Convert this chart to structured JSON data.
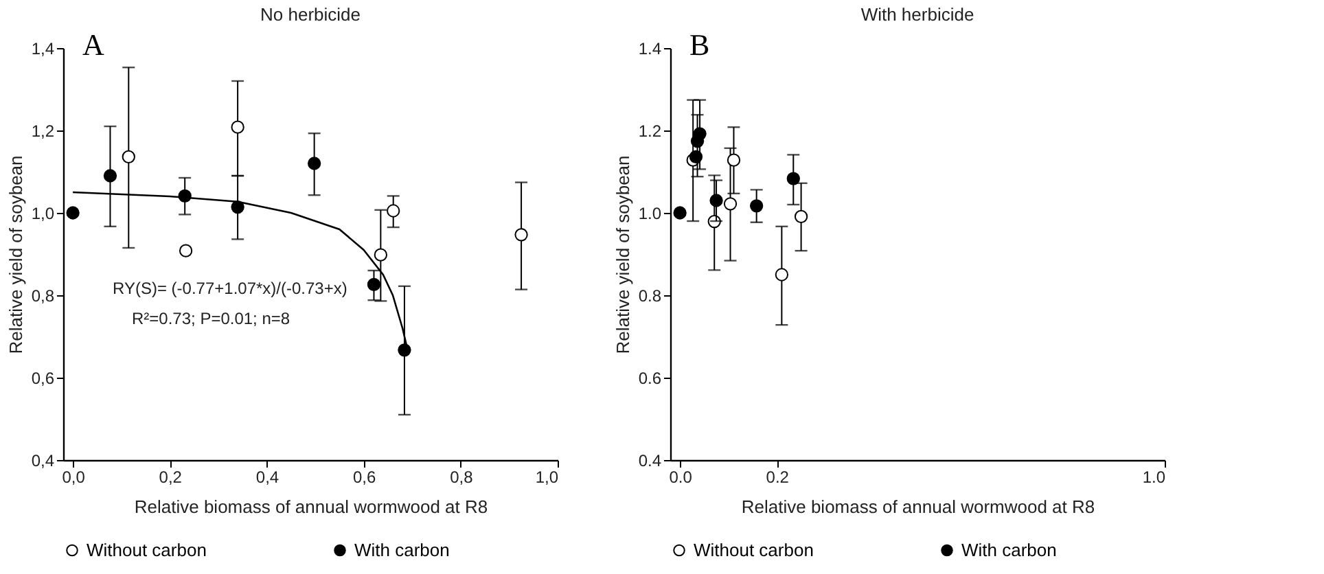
{
  "chart_data": [
    {
      "type": "scatter",
      "title": "No herbicide",
      "xlabel": "Relative biomass of annual wormwood at R8",
      "ylabel": "Relative yield of soybean",
      "annotations": [
        "A",
        "RY(S)= (-0.77+1.07*x)/(-0.73+x)",
        "R²=0.73; P=0.01; n=8"
      ],
      "xlim": [
        -0.02,
        1.0
      ],
      "ylim": [
        0.4,
        1.4
      ],
      "xticks": [
        {
          "value": 0,
          "label": "0,0"
        },
        {
          "value": 0.2,
          "label": "0,2"
        },
        {
          "value": 0.4,
          "label": "0,4"
        },
        {
          "value": 0.6,
          "label": "0,6"
        },
        {
          "value": 0.8,
          "label": "0,8"
        },
        {
          "value": 1.0,
          "label": "1,0"
        }
      ],
      "yticks": [
        {
          "value": 0.4,
          "label": "0,4"
        },
        {
          "value": 0.6,
          "label": "0,6"
        },
        {
          "value": 0.8,
          "label": "0,8"
        },
        {
          "value": 1.0,
          "label": "1,0"
        },
        {
          "value": 1.2,
          "label": "1,2"
        },
        {
          "value": 1.4,
          "label": "1,4"
        }
      ],
      "grid": false,
      "legend": "bottom",
      "marker": "circle",
      "series": [
        {
          "name": "Without carbon",
          "color": "#ffffff",
          "x": [
            0.115,
            0.233,
            0.34,
            0.635,
            0.661,
            0.925
          ],
          "values": [
            1.136,
            0.908,
            1.208,
            0.898,
            1.005,
            0.947
          ],
          "errors": [
            [
              0.915,
              1.353
            ],
            null,
            [
              1.09,
              1.32
            ],
            [
              0.786,
              1.007
            ],
            [
              0.965,
              1.041
            ],
            [
              0.814,
              1.074
            ]
          ]
        },
        {
          "name": "With  carbon",
          "color": "#000000",
          "x": [
            0.0,
            0.077,
            0.231,
            0.34,
            0.498,
            0.621,
            0.684
          ],
          "values": [
            1.0,
            1.09,
            1.041,
            1.014,
            1.12,
            0.826,
            0.667
          ],
          "errors": [
            null,
            [
              0.967,
              1.21
            ],
            [
              0.996,
              1.085
            ],
            [
              0.936,
              1.09
            ],
            [
              1.043,
              1.193
            ],
            [
              0.788,
              0.86
            ],
            [
              0.51,
              0.822
            ]
          ]
        },
        {
          "type": "line",
          "color": "#000000",
          "marker": "none",
          "x": [
            0.0,
            0.1,
            0.2,
            0.34,
            0.45,
            0.55,
            0.6,
            0.64,
            0.66,
            0.68,
            0.69
          ],
          "values": [
            1.05,
            1.045,
            1.04,
            1.027,
            1.0,
            0.96,
            0.91,
            0.85,
            0.8,
            0.72,
            0.67
          ]
        }
      ]
    },
    {
      "type": "scatter",
      "title": "With herbicide",
      "xlabel": "Relative biomass of annual wormwood at R8",
      "ylabel": "Relative yield of soybean",
      "annotations": [
        "B"
      ],
      "xlim": [
        -0.02,
        1.0
      ],
      "ylim": [
        0.4,
        1.4
      ],
      "xticks": [
        {
          "value": 0,
          "label": "0.0"
        },
        0.2,
        {
          "value": 1.0,
          "label": "1.0"
        }
      ],
      "yticks": [
        0.4,
        0.6,
        0.8,
        {
          "value": 1.0,
          "label": "1.0"
        },
        1.2,
        1.4
      ],
      "grid": false,
      "legend": "bottom",
      "marker": "circle",
      "series": [
        {
          "name": "Without carbon",
          "color": "#ffffff",
          "x": [
            0.027,
            0.071,
            0.104,
            0.111,
            0.21,
            0.25
          ],
          "values": [
            1.128,
            0.979,
            1.022,
            1.128,
            0.85,
            0.991
          ],
          "errors": [
            [
              0.98,
              1.274
            ],
            [
              0.861,
              1.091
            ],
            [
              0.884,
              1.157
            ],
            [
              1.047,
              1.208
            ],
            [
              0.728,
              0.967
            ],
            [
              0.908,
              1.072
            ]
          ]
        },
        {
          "name": "With  carbon",
          "color": "#000000",
          "x": [
            0.0,
            0.033,
            0.036,
            0.041,
            0.075,
            0.158,
            0.234
          ],
          "values": [
            1.0,
            1.136,
            1.174,
            1.192,
            1.03,
            1.017,
            1.083
          ],
          "errors": [
            null,
            null,
            [
              1.088,
              1.238
            ],
            [
              1.106,
              1.274
            ],
            [
              0.98,
              1.079
            ],
            [
              0.977,
              1.056
            ],
            [
              1.02,
              1.141
            ]
          ]
        }
      ]
    }
  ]
}
